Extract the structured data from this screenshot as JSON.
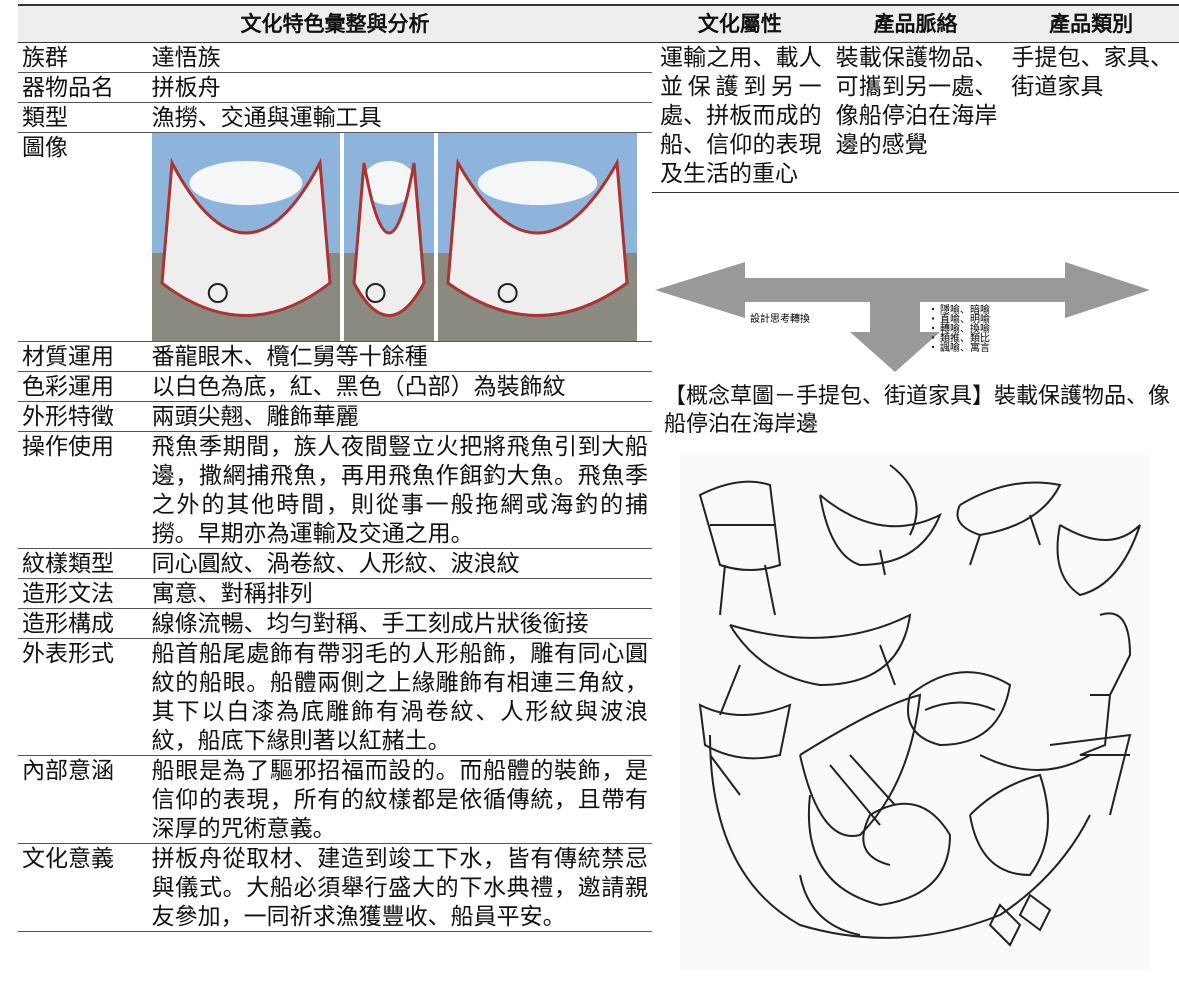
{
  "left_table": {
    "header": "文化特色彙整與分析",
    "rows": [
      {
        "label": "族群",
        "value": "達悟族"
      },
      {
        "label": "器物品名",
        "value": "拼板舟"
      },
      {
        "label": "類型",
        "value": "漁撈、交通與運輸工具"
      },
      {
        "label": "圖像"
      },
      {
        "label": "材質運用",
        "value": "番龍眼木、欖仁舅等十餘種"
      },
      {
        "label": "色彩運用",
        "value": "以白色為底，紅、黑色（凸部）為裝飾紋"
      },
      {
        "label": "外形特徵",
        "value": "兩頭尖翹、雕飾華麗"
      },
      {
        "label": "操作使用",
        "value": "飛魚季期間，族人夜間豎立火把將飛魚引到大船邊，撒網捕飛魚，再用飛魚作餌釣大魚。飛魚季之外的其他時間，則從事一般拖網或海釣的捕撈。早期亦為運輸及交通之用。"
      },
      {
        "label": "紋樣類型",
        "value": "同心圓紋、渦卷紋、人形紋、波浪紋"
      },
      {
        "label": "造形文法",
        "value": "寓意、對稱排列"
      },
      {
        "label": "造形構成",
        "value": "線條流暢、均勻對稱、手工刻成片狀後銜接"
      },
      {
        "label": "外表形式",
        "value": "船首船尾處飾有帶羽毛的人形船飾，雕有同心圓紋的船眼。船體兩側之上緣雕飾有相連三角紋，其下以白漆為底雕飾有渦卷紋、人形紋與波浪紋，船底下緣則著以紅赭土。"
      },
      {
        "label": "內部意涵",
        "value": "船眼是為了驅邪招福而設的。而船體的裝飾，是信仰的表現，所有的紋樣都是依循傳統，且帶有深厚的咒術意義。"
      },
      {
        "label": "文化意義",
        "value": "拼板舟從取材、建造到竣工下水，皆有傳統禁忌與儀式。大船必須舉行盛大的下水典禮，邀請親友參加，一同祈求漁獲豐收、船員平安。"
      }
    ]
  },
  "right_table": {
    "headers": [
      "文化屬性",
      "產品脈絡",
      "產品類別"
    ],
    "cells": [
      "運輸之用、載人並保護到另一處、拼板而成的船、信仰的表現及生活的重心",
      "裝載保護物品、可攜到另一處、像船停泊在海岸邊的感覺",
      "手提包、家具、街道家具"
    ]
  },
  "diagram": {
    "center_label": "設計思考轉換",
    "items": [
      "隱喻、暗喻",
      "直喻、明喻",
      "轉喻、換喻",
      "類推、類比",
      "諷喻、寓言"
    ]
  },
  "caption": "【概念草圖－手提包、街道家具】裝載保護物品、像船停泊在海岸邊"
}
